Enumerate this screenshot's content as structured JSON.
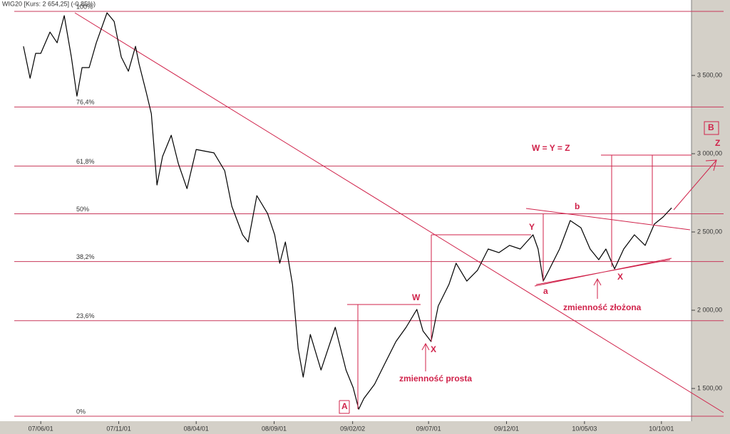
{
  "chart_data": {
    "type": "line",
    "title": "WIG20 [Kurs: 2 654,25] (-0,85%)",
    "series": [
      {
        "name": "WIG20",
        "color": "#000000",
        "x": [
          "07/04/28",
          "07/05/11",
          "07/05/22",
          "07/06/01",
          "07/06/19",
          "07/07/03",
          "07/07/17",
          "07/07/31",
          "07/08/11",
          "07/08/21",
          "07/09/04",
          "07/09/18",
          "07/10/09",
          "07/10/23",
          "07/11/06",
          "07/11/20",
          "07/12/04",
          "07/12/11",
          "07/12/25",
          "08/01/04",
          "08/01/15",
          "08/01/26",
          "08/02/12",
          "08/02/26",
          "08/03/14",
          "08/04/01",
          "08/05/06",
          "08/05/27",
          "08/06/10",
          "08/07/01",
          "08/07/12",
          "08/07/29",
          "08/08/19",
          "08/09/02",
          "08/09/12",
          "08/09/23",
          "08/10/07",
          "08/10/18",
          "08/10/28",
          "08/11/11",
          "08/12/02",
          "08/12/30",
          "09/01/20",
          "09/02/03",
          "09/02/14",
          "09/02/24",
          "09/03/17",
          "09/04/07",
          "09/04/28",
          "09/05/18",
          "09/06/08",
          "09/06/20",
          "09/07/06",
          "09/07/20",
          "09/08/10",
          "09/08/24",
          "09/09/14",
          "09/10/05",
          "09/10/26",
          "09/11/16",
          "09/12/07",
          "09/12/28",
          "10/01/22",
          "10/02/01",
          "10/02/11",
          "10/02/22",
          "10/03/15",
          "10/04/05",
          "10/04/26",
          "10/05/14",
          "10/05/31",
          "10/06/14",
          "10/07/01",
          "10/07/19",
          "10/08/09",
          "10/08/30",
          "10/09/17",
          "10/10/04",
          "10/10/21"
        ],
        "values": [
          3686,
          3482,
          3641,
          3641,
          3777,
          3709,
          3882,
          3618,
          3368,
          3550,
          3550,
          3709,
          3900,
          3845,
          3618,
          3527,
          3686,
          3573,
          3391,
          3255,
          2800,
          2982,
          3118,
          2936,
          2777,
          3027,
          3005,
          2891,
          2664,
          2482,
          2436,
          2732,
          2618,
          2482,
          2300,
          2436,
          2164,
          1755,
          1573,
          1845,
          1618,
          1891,
          1618,
          1505,
          1368,
          1436,
          1527,
          1664,
          1800,
          1891,
          2005,
          1868,
          1800,
          2027,
          2164,
          2300,
          2186,
          2255,
          2391,
          2368,
          2414,
          2391,
          2482,
          2391,
          2186,
          2255,
          2391,
          2573,
          2527,
          2391,
          2323,
          2391,
          2264,
          2391,
          2482,
          2414,
          2550,
          2595,
          2654
        ]
      }
    ],
    "xlim": [
      "07/03/13",
      "10/11/29"
    ],
    "xticks": [
      "07/06/01",
      "07/11/01",
      "08/04/01",
      "08/09/01",
      "09/02/02",
      "09/07/01",
      "09/12/01",
      "10/05/03",
      "10/10/01"
    ],
    "ylim": [
      1291,
      3982
    ],
    "yticks": [
      {
        "value": 1500,
        "label": "1 500,00"
      },
      {
        "value": 2000,
        "label": "2 000,00"
      },
      {
        "value": 2500,
        "label": "2 500,00"
      },
      {
        "value": 3000,
        "label": "3 000,00"
      },
      {
        "value": 3500,
        "label": "3 500,00"
      }
    ],
    "fibonacci": {
      "low": 1323,
      "high": 3909,
      "color": "#c8385a",
      "levels": [
        {
          "value": 0,
          "label": "0%"
        },
        {
          "value": 23.6,
          "label": "23,6%"
        },
        {
          "value": 38.2,
          "label": "38,2%"
        },
        {
          "value": 50,
          "label": "50%"
        },
        {
          "value": 61.8,
          "label": "61,8%"
        },
        {
          "value": 76.4,
          "label": "76,4%"
        },
        {
          "value": 100,
          "label": "100%"
        }
      ]
    },
    "annotations": [
      "W",
      "X",
      "Y",
      "a",
      "b",
      "X",
      "W = Y = Z",
      "Z",
      "B",
      "A",
      "zmienność prosta",
      "zmienność złożona"
    ]
  }
}
